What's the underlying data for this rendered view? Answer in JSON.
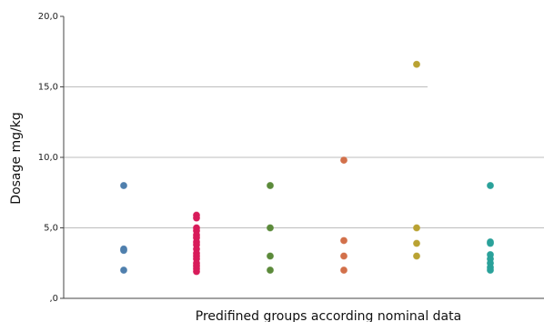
{
  "chart_data": {
    "type": "scatter",
    "title": "",
    "xlabel": "Predifined groups according nominal data",
    "ylabel": "Dosage mg/kg",
    "ylim": [
      0,
      20
    ],
    "yticks": [
      {
        "value": 0,
        "label": ",0"
      },
      {
        "value": 5,
        "label": "5,0"
      },
      {
        "value": 10,
        "label": "10,0"
      },
      {
        "value": 15,
        "label": "15,0"
      },
      {
        "value": 20,
        "label": "20,0"
      }
    ],
    "grid": true,
    "legend": "none",
    "series": [
      {
        "color": "#4f7fad",
        "values": [
          8.0,
          3.5,
          3.4,
          2.0
        ]
      },
      {
        "color": "#d81b5a",
        "values": [
          5.9,
          5.7,
          5.0,
          4.8,
          4.5,
          4.3,
          4.0,
          3.8,
          3.5,
          3.2,
          3.0,
          2.8,
          2.5,
          2.3,
          2.1,
          1.9
        ]
      },
      {
        "color": "#5b8a3a",
        "values": [
          8.0,
          5.0,
          3.0,
          2.0
        ]
      },
      {
        "color": "#d2704a",
        "values": [
          9.8,
          4.1,
          3.0,
          2.0
        ]
      },
      {
        "color": "#b9a232",
        "values": [
          16.6,
          5.0,
          3.9,
          3.0
        ]
      },
      {
        "color": "#2aa19a",
        "values": [
          8.0,
          4.0,
          3.9,
          3.1,
          2.8,
          2.5,
          2.2,
          2.0
        ]
      }
    ]
  }
}
